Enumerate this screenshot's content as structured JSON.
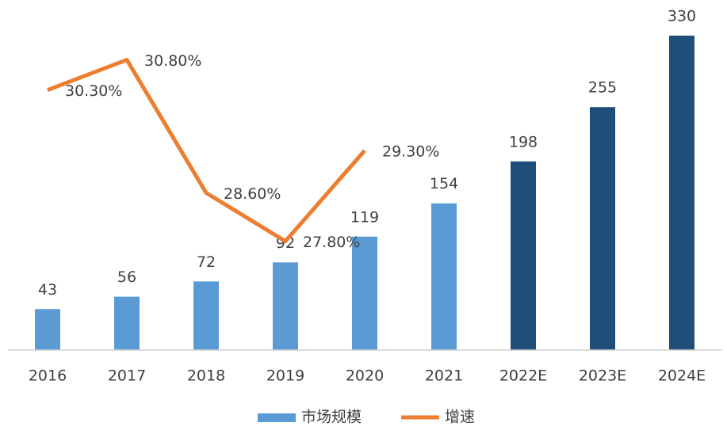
{
  "chart_data": {
    "type": "bar",
    "categories": [
      "2016",
      "2017",
      "2018",
      "2019",
      "2020",
      "2021",
      "2022E",
      "2023E",
      "2024E"
    ],
    "ylim": [
      0,
      330
    ],
    "y2lim": [
      26,
      31.2
    ],
    "series": [
      {
        "name": "市场规模",
        "type": "bar",
        "color": "#5b9bd5",
        "colors": [
          "#5b9bd5",
          "#5b9bd5",
          "#5b9bd5",
          "#5b9bd5",
          "#5b9bd5",
          "#5b9bd5",
          "#1f4e79",
          "#1f4e79",
          "#1f4e79"
        ],
        "values": [
          43,
          56,
          72,
          92,
          119,
          154,
          198,
          255,
          330
        ]
      },
      {
        "name": "增速",
        "type": "line",
        "axis": "y2",
        "color": "#ed7d31",
        "values": [
          30.3,
          30.8,
          28.6,
          27.8,
          29.3,
          null,
          null,
          null,
          null
        ],
        "value_labels": [
          "30.30%",
          "30.80%",
          "28.60%",
          "27.80%",
          "29.30%",
          null,
          null,
          null,
          null
        ]
      }
    ],
    "legend": "bottom"
  }
}
